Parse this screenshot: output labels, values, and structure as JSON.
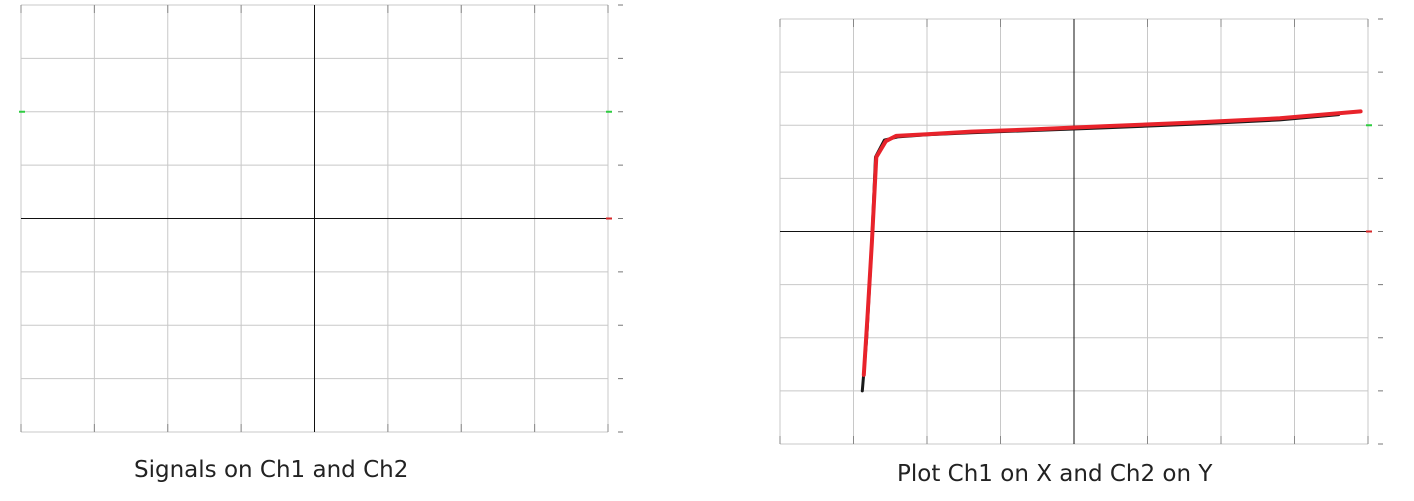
{
  "chart_data": [
    {
      "type": "line",
      "title": "Signals on Ch1 and Ch2",
      "grid": true,
      "divisions": {
        "x": 8,
        "y": 8
      },
      "xlim": [
        -4,
        4
      ],
      "ylim": [
        -4,
        4
      ],
      "markers": [
        {
          "side": "left",
          "y": 2,
          "color": "#2ecc40"
        },
        {
          "side": "right",
          "y": 2,
          "color": "#2ecc40"
        },
        {
          "side": "right",
          "y": 0,
          "color": "#d62728"
        }
      ],
      "series": []
    },
    {
      "type": "line",
      "title": "Plot Ch1 on X and Ch2 on Y",
      "grid": true,
      "divisions": {
        "x": 8,
        "y": 8
      },
      "xlim": [
        -4,
        4
      ],
      "ylim": [
        -4,
        4
      ],
      "markers": [
        {
          "side": "right",
          "y": 2,
          "color": "#2ecc40"
        },
        {
          "side": "right",
          "y": 0,
          "color": "#d62728"
        }
      ],
      "series": [
        {
          "color": "#1a1a1a",
          "x": [
            -2.88,
            -2.82,
            -2.76,
            -2.7,
            -2.58,
            -2.4,
            -2.0,
            -1.4,
            -0.6,
            0.4,
            1.6,
            2.8,
            3.6
          ],
          "y": [
            -3.0,
            -2.0,
            -0.5,
            1.4,
            1.72,
            1.78,
            1.82,
            1.86,
            1.9,
            1.95,
            2.02,
            2.1,
            2.2
          ]
        },
        {
          "color": "#e8232b",
          "x": [
            -2.86,
            -2.81,
            -2.75,
            -2.69,
            -2.56,
            -2.42,
            -2.0,
            -1.4,
            -0.6,
            0.4,
            1.6,
            2.8,
            3.9
          ],
          "y": [
            -2.7,
            -1.6,
            -0.2,
            1.4,
            1.7,
            1.8,
            1.83,
            1.88,
            1.92,
            1.98,
            2.05,
            2.13,
            2.26
          ]
        }
      ]
    }
  ]
}
